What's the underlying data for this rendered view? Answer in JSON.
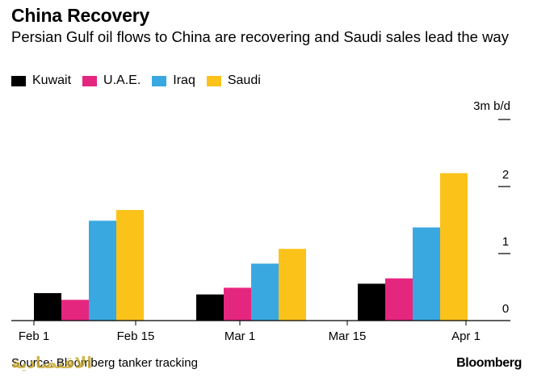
{
  "title": "China Recovery",
  "subtitle": "Persian Gulf oil flows to China are recovering and Saudi sales lead the way",
  "source": "Source: Bloomberg tanker tracking",
  "brand": "Bloomberg",
  "watermark_text": "الاقتصادية",
  "colors": {
    "kuwait": "#000000",
    "uae": "#e5267f",
    "iraq": "#3aa8e0",
    "saudi": "#fbc21a",
    "axis": "#000000"
  },
  "chart_data": {
    "type": "bar",
    "unit_label": "3m b/d",
    "ylim": [
      0,
      3
    ],
    "y_ticks": [
      0,
      1,
      2,
      3
    ],
    "y_tick_labels": [
      "0",
      "1",
      "2",
      ""
    ],
    "y_axis_side": "right",
    "x_tick_labels": [
      "Feb 1",
      "Feb 15",
      "Mar 1",
      "Mar 15",
      "Apr 1"
    ],
    "categories": [
      "Feb 1 – Feb 15",
      "Feb 15 – Mar 1",
      "Mar 15 – Apr 1"
    ],
    "grid": false,
    "legend_position": "top-left",
    "series": [
      {
        "name": "Kuwait",
        "color_key": "kuwait",
        "values": [
          0.41,
          0.39,
          0.55
        ]
      },
      {
        "name": "U.A.E.",
        "color_key": "uae",
        "values": [
          0.31,
          0.49,
          0.63
        ]
      },
      {
        "name": "Iraq",
        "color_key": "iraq",
        "values": [
          1.49,
          0.85,
          1.39
        ]
      },
      {
        "name": "Saudi",
        "color_key": "saudi",
        "values": [
          1.65,
          1.07,
          2.2
        ]
      }
    ]
  }
}
